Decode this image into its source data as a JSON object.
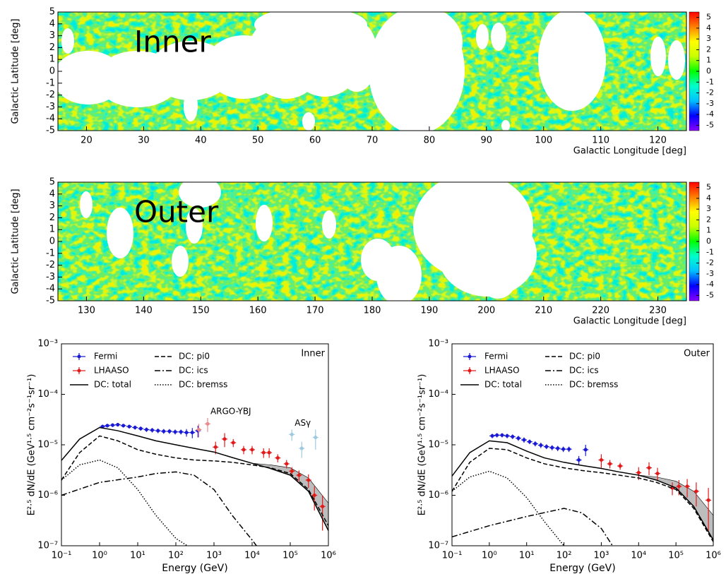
{
  "chart_data": [
    {
      "type": "heatmap",
      "label": "Inner",
      "xlabel": "Galactic Longitude [deg]",
      "ylabel": "Galactic Latitude [deg]",
      "xlim": [
        15,
        125
      ],
      "xticks": [
        20,
        30,
        40,
        50,
        60,
        70,
        80,
        90,
        100,
        110,
        120
      ],
      "ylim": [
        -5,
        5
      ],
      "yticks": [
        -5,
        -4,
        -3,
        -2,
        -1,
        0,
        1,
        2,
        3,
        4,
        5
      ],
      "zlim": [
        -5.5,
        5.5
      ],
      "zticks": [
        -5,
        -4,
        -3,
        -2,
        -1,
        0,
        1,
        2,
        3,
        4,
        5
      ],
      "colorbar_colors": [
        "#8a00ff",
        "#0000ff",
        "#00bfff",
        "#00ffcc",
        "#00ff00",
        "#c8ff00",
        "#ffff00",
        "#ff8000",
        "#ff0000"
      ]
    },
    {
      "type": "heatmap",
      "label": "Outer",
      "xlabel": "Galactic Longitude [deg]",
      "ylabel": "Galactic Latitude [deg]",
      "xlim": [
        125,
        235
      ],
      "xticks": [
        130,
        140,
        150,
        160,
        170,
        180,
        190,
        200,
        210,
        220,
        230
      ],
      "ylim": [
        -5,
        5
      ],
      "yticks": [
        -5,
        -4,
        -3,
        -2,
        -1,
        0,
        1,
        2,
        3,
        4,
        5
      ],
      "zlim": [
        -5.5,
        5.5
      ],
      "zticks": [
        -5,
        -4,
        -3,
        -2,
        -1,
        0,
        1,
        2,
        3,
        4,
        5
      ],
      "colorbar_colors": [
        "#8a00ff",
        "#0000ff",
        "#00bfff",
        "#00ffcc",
        "#00ff00",
        "#c8ff00",
        "#ffff00",
        "#ff8000",
        "#ff0000"
      ]
    },
    {
      "type": "spectrum",
      "label": "Inner",
      "xlabel": "Energy (GeV)",
      "ylabel": "E²·⁵ dN/dE (GeV¹·⁵ cm⁻²s⁻¹sr⁻¹)",
      "log_x": true,
      "log_y": true,
      "xlim": [
        0.1,
        1000000
      ],
      "ylim": [
        1e-07,
        0.001
      ],
      "xticks": [
        {
          "value": 0.1,
          "label": "10⁻¹"
        },
        {
          "value": 1,
          "label": "10⁰"
        },
        {
          "value": 10,
          "label": "10¹"
        },
        {
          "value": 100,
          "label": "10²"
        },
        {
          "value": 1000,
          "label": "10³"
        },
        {
          "value": 10000,
          "label": "10⁴"
        },
        {
          "value": 100000,
          "label": "10⁵"
        },
        {
          "value": 1000000,
          "label": "10⁶"
        }
      ],
      "yticks": [
        {
          "value": 1e-07,
          "label": "10⁻⁷"
        },
        {
          "value": 1e-06,
          "label": "10⁻⁶"
        },
        {
          "value": 1e-05,
          "label": "10⁻⁵"
        },
        {
          "value": 0.0001,
          "label": "10⁻⁴"
        },
        {
          "value": 0.001,
          "label": "10⁻³"
        }
      ],
      "band": {
        "color": "#bdbdbd",
        "x": [
          10000,
          30000,
          100000,
          300000,
          1000000
        ],
        "lower": [
          4.3e-06,
          3.4e-06,
          2.5e-06,
          1.2e-06,
          2e-07
        ],
        "upper": [
          4.3e-06,
          4e-06,
          3.5e-06,
          2.2e-06,
          7e-07
        ]
      },
      "series": [
        {
          "name": "Fermi",
          "color": "#1a1ad6",
          "style": "errorbar",
          "x": [
            1.2,
            1.6,
            2.2,
            3,
            4.2,
            6,
            8.5,
            12,
            17,
            24,
            34,
            48,
            68,
            96,
            136,
            190,
            270,
            380
          ],
          "values": [
            2.3e-05,
            2.4e-05,
            2.45e-05,
            2.5e-05,
            2.4e-05,
            2.3e-05,
            2.2e-05,
            2.1e-05,
            2e-05,
            1.95e-05,
            1.9e-05,
            1.85e-05,
            1.85e-05,
            1.8e-05,
            1.8e-05,
            1.75e-05,
            1.75e-05,
            1.9e-05
          ],
          "errors": [
            2e-06,
            2e-06,
            2e-06,
            2e-06,
            2e-06,
            2e-06,
            2e-06,
            2e-06,
            2e-06,
            2e-06,
            2e-06,
            2e-06,
            2e-06,
            2e-06,
            2e-06,
            3e-06,
            4e-06,
            5e-06
          ]
        },
        {
          "name": "LHAASO",
          "color": "#e31a1a",
          "style": "errorbar",
          "x": [
            1100,
            1900,
            3200,
            6000,
            10000,
            20000,
            28000,
            47000,
            80000,
            110000,
            170000,
            300000,
            430000,
            700000
          ],
          "values": [
            9e-06,
            1.3e-05,
            1.1e-05,
            8e-06,
            8e-06,
            7e-06,
            7e-06,
            5.5e-06,
            4.2e-06,
            3e-06,
            2.5e-06,
            2e-06,
            1e-06,
            6e-07
          ],
          "errors": [
            2.5e-06,
            4e-06,
            2e-06,
            1.5e-06,
            1.5e-06,
            1.5e-06,
            1.5e-06,
            1e-06,
            8e-07,
            6e-07,
            6e-07,
            6e-07,
            5e-07,
            4e-07
          ]
        },
        {
          "name": "DC: total",
          "color": "#000000",
          "style": "solid",
          "x": [
            0.1,
            0.3,
            1,
            3,
            10,
            30,
            100,
            300,
            1000,
            3000,
            10000,
            30000,
            100000,
            300000,
            1000000
          ],
          "values": [
            4.9e-06,
            1.3e-05,
            2.2e-05,
            1.9e-05,
            1.5e-05,
            1.2e-05,
            1e-05,
            8.5e-06,
            7.2e-06,
            5.6e-06,
            4.3e-06,
            3.4e-06,
            2.5e-06,
            1.2e-06,
            2e-07
          ]
        },
        {
          "name": "DC: pi0",
          "color": "#000000",
          "style": "dashed",
          "x": [
            0.1,
            0.3,
            1,
            3,
            10,
            30,
            100,
            300,
            1000,
            3000,
            10000,
            30000,
            100000,
            300000,
            1000000
          ],
          "values": [
            2e-06,
            7e-06,
            1.5e-05,
            1.2e-05,
            8e-06,
            6.5e-06,
            5.5e-06,
            5e-06,
            4.8e-06,
            4.5e-06,
            4e-06,
            3.5e-06,
            2.7e-06,
            1.3e-06,
            2.5e-07
          ]
        },
        {
          "name": "DC: ics",
          "color": "#000000",
          "style": "dashdot",
          "x": [
            0.1,
            1,
            10,
            30,
            100,
            300,
            1000,
            3000,
            10000,
            13000
          ],
          "values": [
            1e-06,
            1.8e-06,
            2.3e-06,
            2.7e-06,
            2.9e-06,
            2.5e-06,
            1.3e-06,
            4e-07,
            1.3e-07,
            1e-07
          ]
        },
        {
          "name": "DC: bremss",
          "color": "#000000",
          "style": "dotted",
          "x": [
            0.1,
            0.3,
            1,
            3,
            10,
            30,
            100,
            200
          ],
          "values": [
            2e-06,
            4e-06,
            5e-06,
            3.5e-06,
            1.3e-06,
            4e-07,
            1.4e-07,
            1e-07
          ]
        },
        {
          "name": "ARGO-YBJ",
          "color": "#e98a8a",
          "style": "errorbar",
          "label_on_plot": true,
          "x": [
            400,
            680
          ],
          "values": [
            2e-05,
            2.6e-05
          ],
          "errors": [
            6e-06,
            8e-06
          ]
        },
        {
          "name": "ASγ",
          "color": "#9ecae1",
          "style": "errorbar",
          "label_on_plot": true,
          "x": [
            110000,
            200000,
            460000
          ],
          "values": [
            1.6e-05,
            8.5e-06,
            1.4e-05
          ],
          "errors": [
            4e-06,
            3e-06,
            6e-06
          ]
        }
      ]
    },
    {
      "type": "spectrum",
      "label": "Outer",
      "xlabel": "Energy (GeV)",
      "ylabel": "E²·⁵ dN/dE (GeV¹·⁵ cm⁻²s⁻¹sr⁻¹)",
      "log_x": true,
      "log_y": true,
      "xlim": [
        0.1,
        1000000
      ],
      "ylim": [
        1e-07,
        0.001
      ],
      "xticks": [
        {
          "value": 0.1,
          "label": "10⁻¹"
        },
        {
          "value": 1,
          "label": "10⁰"
        },
        {
          "value": 10,
          "label": "10¹"
        },
        {
          "value": 100,
          "label": "10²"
        },
        {
          "value": 1000,
          "label": "10³"
        },
        {
          "value": 10000,
          "label": "10⁴"
        },
        {
          "value": 100000,
          "label": "10⁵"
        },
        {
          "value": 1000000,
          "label": "10⁶"
        }
      ],
      "yticks": [
        {
          "value": 1e-07,
          "label": "10⁻⁷"
        },
        {
          "value": 1e-06,
          "label": "10⁻⁶"
        },
        {
          "value": 1e-05,
          "label": "10⁻⁵"
        },
        {
          "value": 0.0001,
          "label": "10⁻⁴"
        },
        {
          "value": 0.001,
          "label": "10⁻³"
        }
      ],
      "band": {
        "color": "#bdbdbd",
        "x": [
          10000,
          30000,
          100000,
          300000,
          1000000
        ],
        "lower": [
          2.5e-06,
          2e-06,
          1.4e-06,
          6e-07,
          1.3e-07
        ],
        "upper": [
          2.5e-06,
          2.3e-06,
          1.9e-06,
          1.2e-06,
          4e-07
        ]
      },
      "series": [
        {
          "name": "Fermi",
          "color": "#1a1ad6",
          "style": "errorbar",
          "x": [
            1.2,
            1.6,
            2.2,
            3,
            4.2,
            6,
            8.5,
            12,
            17,
            24,
            34,
            48,
            68,
            96,
            136,
            250,
            380
          ],
          "values": [
            1.5e-05,
            1.55e-05,
            1.55e-05,
            1.5e-05,
            1.45e-05,
            1.35e-05,
            1.25e-05,
            1.15e-05,
            1.05e-05,
            9.8e-06,
            9.2e-06,
            8.8e-06,
            8.5e-06,
            8.2e-06,
            8.2e-06,
            5e-06,
            8e-06
          ],
          "errors": [
            1.5e-06,
            1.5e-06,
            1.5e-06,
            1.5e-06,
            1.5e-06,
            1.5e-06,
            1.5e-06,
            1.2e-06,
            1.2e-06,
            1.2e-06,
            1e-06,
            1e-06,
            1e-06,
            1e-06,
            1e-06,
            1e-06,
            2e-06
          ]
        },
        {
          "name": "LHAASO",
          "color": "#e31a1a",
          "style": "errorbar",
          "x": [
            1000,
            1700,
            3200,
            10000,
            19000,
            32000,
            80000,
            120000,
            200000,
            350000,
            740000
          ],
          "values": [
            5e-06,
            4.2e-06,
            3.8e-06,
            2.8e-06,
            3.5e-06,
            2.7e-06,
            1.4e-06,
            1.5e-06,
            1.5e-06,
            1.2e-06,
            8e-07
          ],
          "errors": [
            1.5e-06,
            8e-07,
            6e-07,
            8e-07,
            1e-06,
            8e-07,
            4e-07,
            5e-07,
            6e-07,
            6e-07,
            6e-07
          ]
        },
        {
          "name": "DC: total",
          "color": "#000000",
          "style": "solid",
          "x": [
            0.1,
            0.3,
            1,
            3,
            10,
            30,
            100,
            300,
            1000,
            3000,
            10000,
            30000,
            100000,
            300000,
            1000000
          ],
          "values": [
            2.4e-06,
            7e-06,
            1.2e-05,
            1.1e-05,
            7.5e-06,
            5.5e-06,
            4.5e-06,
            3.9e-06,
            3.4e-06,
            2.9e-06,
            2.5e-06,
            2e-06,
            1.4e-06,
            6e-07,
            1.3e-07
          ]
        },
        {
          "name": "DC: pi0",
          "color": "#000000",
          "style": "dashed",
          "x": [
            0.1,
            0.3,
            1,
            3,
            10,
            30,
            100,
            300,
            1000,
            3000,
            10000,
            30000,
            100000,
            300000,
            1000000
          ],
          "values": [
            1.2e-06,
            4.5e-06,
            8.5e-06,
            8e-06,
            5.5e-06,
            4.2e-06,
            3.5e-06,
            3.1e-06,
            2.8e-06,
            2.5e-06,
            2.2e-06,
            1.8e-06,
            1.3e-06,
            5.5e-07,
            1.2e-07
          ]
        },
        {
          "name": "DC: ics",
          "color": "#000000",
          "style": "dashdot",
          "x": [
            0.1,
            1,
            10,
            100,
            300,
            1000,
            2000
          ],
          "values": [
            1.5e-07,
            2.5e-07,
            3.8e-07,
            5.5e-07,
            4.5e-07,
            2.2e-07,
            1e-07
          ]
        },
        {
          "name": "DC: bremss",
          "color": "#000000",
          "style": "dotted",
          "x": [
            0.1,
            0.3,
            1,
            3,
            10,
            30,
            100
          ],
          "values": [
            1.2e-06,
            2.3e-06,
            3e-06,
            2.2e-06,
            9e-07,
            3e-07,
            1e-07
          ]
        }
      ]
    }
  ]
}
